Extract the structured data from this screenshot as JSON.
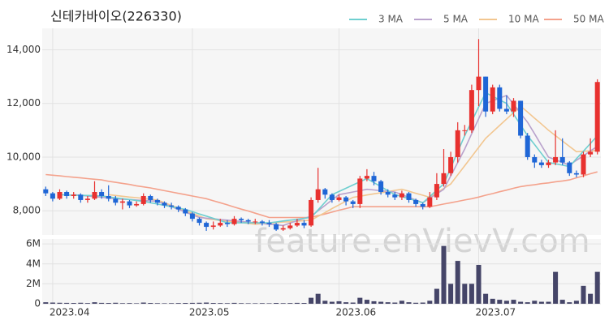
{
  "chart_data": {
    "type": "candlestick",
    "title": "신테카바이오(226330)",
    "watermark": "feature.enVievV.com",
    "categories": [
      null,
      "2023.04",
      null,
      null,
      null,
      null,
      null,
      null,
      null,
      null,
      null,
      null,
      null,
      null,
      null,
      null,
      null,
      null,
      null,
      null,
      null,
      "2023.05",
      null,
      null,
      null,
      null,
      null,
      null,
      null,
      null,
      null,
      null,
      null,
      null,
      null,
      null,
      null,
      null,
      null,
      null,
      null,
      null,
      "2023.06",
      null,
      null,
      null,
      null,
      null,
      null,
      null,
      null,
      null,
      null,
      null,
      null,
      null,
      null,
      null,
      null,
      null,
      null,
      null,
      "2023.07",
      null,
      null,
      null,
      null,
      null,
      null,
      null,
      null,
      null,
      null,
      null,
      null,
      null,
      null,
      null,
      null,
      null
    ],
    "open": [
      8800,
      8650,
      8450,
      8700,
      8550,
      8600,
      8400,
      8450,
      8700,
      8550,
      8450,
      8300,
      8350,
      8200,
      8250,
      8550,
      8400,
      8300,
      8200,
      8150,
      8050,
      7900,
      7700,
      7550,
      7400,
      7450,
      7550,
      7500,
      7700,
      7650,
      7600,
      7600,
      7550,
      7500,
      7300,
      7350,
      7450,
      7550,
      7450,
      8400,
      8800,
      8600,
      8400,
      8500,
      8350,
      8250,
      9200,
      9300,
      9100,
      8700,
      8600,
      8500,
      8650,
      8400,
      8250,
      8150,
      8500,
      9000,
      9400,
      10000,
      11000,
      11000,
      12500,
      13000,
      11700,
      12600,
      11800,
      11700,
      12100,
      10800,
      10000,
      9800,
      9700,
      9800,
      10000,
      9800,
      9400,
      9350,
      10100,
      10200
    ],
    "high": [
      8900,
      8700,
      8800,
      8750,
      8700,
      8650,
      8550,
      9100,
      8800,
      8950,
      8550,
      8450,
      8400,
      8350,
      8650,
      8600,
      8450,
      8350,
      8300,
      8200,
      8100,
      7950,
      7750,
      7600,
      7600,
      7700,
      7650,
      7800,
      7750,
      7700,
      7700,
      7650,
      7650,
      7550,
      7450,
      7550,
      7700,
      7650,
      8500,
      9600,
      8850,
      8650,
      8600,
      8550,
      8400,
      9300,
      9550,
      9450,
      9150,
      8800,
      8700,
      8750,
      8700,
      8450,
      8300,
      8700,
      9400,
      10300,
      10200,
      11300,
      11200,
      12700,
      14400,
      13000,
      12700,
      12700,
      12300,
      12200,
      12100,
      10900,
      10100,
      9900,
      9900,
      11000,
      10700,
      9850,
      9500,
      10200,
      10700,
      12900
    ],
    "low": [
      8550,
      8350,
      8400,
      8450,
      8450,
      8300,
      8300,
      8400,
      8450,
      8350,
      8200,
      8050,
      8100,
      8150,
      8200,
      8300,
      8200,
      8100,
      8050,
      7950,
      7800,
      7600,
      7450,
      7250,
      7300,
      7400,
      7400,
      7450,
      7550,
      7500,
      7500,
      7450,
      7400,
      7250,
      7250,
      7300,
      7400,
      7350,
      7400,
      8300,
      8450,
      8300,
      8350,
      8200,
      8100,
      8100,
      9100,
      8950,
      8600,
      8500,
      8400,
      8400,
      8300,
      8150,
      8050,
      8100,
      8400,
      8900,
      9300,
      9800,
      10800,
      10900,
      11900,
      11500,
      11600,
      11700,
      11600,
      11500,
      10700,
      9900,
      9600,
      9600,
      9600,
      9700,
      9700,
      9300,
      9250,
      9250,
      10000,
      10100
    ],
    "close": [
      8650,
      8450,
      8700,
      8550,
      8600,
      8400,
      8450,
      8700,
      8550,
      8450,
      8300,
      8350,
      8200,
      8250,
      8550,
      8400,
      8300,
      8200,
      8150,
      8050,
      7900,
      7700,
      7550,
      7400,
      7450,
      7550,
      7500,
      7700,
      7650,
      7600,
      7600,
      7550,
      7500,
      7300,
      7350,
      7450,
      7550,
      7450,
      8400,
      8800,
      8600,
      8400,
      8500,
      8350,
      8250,
      9200,
      9300,
      9100,
      8700,
      8600,
      8500,
      8650,
      8400,
      8250,
      8150,
      8500,
      9000,
      9400,
      10000,
      11000,
      11000,
      12500,
      13000,
      11700,
      12600,
      11800,
      11700,
      12100,
      10800,
      10000,
      9800,
      9700,
      9800,
      10000,
      9800,
      9400,
      9350,
      10100,
      10200,
      12800
    ],
    "volume": [
      150000,
      120000,
      100000,
      90000,
      80000,
      100000,
      70000,
      150000,
      90000,
      80000,
      100000,
      60000,
      70000,
      50000,
      120000,
      80000,
      60000,
      50000,
      60000,
      70000,
      80000,
      90000,
      100000,
      120000,
      80000,
      70000,
      60000,
      90000,
      60000,
      50000,
      50000,
      60000,
      50000,
      80000,
      60000,
      70000,
      90000,
      80000,
      600000,
      1000000,
      300000,
      200000,
      250000,
      150000,
      120000,
      600000,
      400000,
      250000,
      200000,
      150000,
      120000,
      300000,
      150000,
      100000,
      120000,
      300000,
      1500000,
      5800000,
      2000000,
      4300000,
      2000000,
      2000000,
      3900000,
      1000000,
      500000,
      400000,
      300000,
      400000,
      200000,
      150000,
      300000,
      200000,
      200000,
      3200000,
      400000,
      150000,
      300000,
      1800000,
      1000000,
      3200000
    ],
    "up_color": "#e8312f",
    "down_color": "#1f66d6",
    "volume_color": "#454568",
    "series": [
      {
        "name": "3 MA",
        "color": "#6fcfd0",
        "values": [
          null,
          null,
          8600,
          8590,
          8580,
          8575,
          8570,
          8560,
          8550,
          8520,
          8480,
          8450,
          8420,
          8380,
          8350,
          8300,
          8250,
          8200,
          8150,
          8100,
          8050,
          7970,
          7880,
          7800,
          7720,
          7630,
          7550,
          7550,
          7550,
          7550,
          7550,
          7550,
          7550,
          7580,
          7620,
          7650,
          7680,
          7720,
          7750,
          8030,
          8320,
          8600,
          8720,
          8840,
          8960,
          9080,
          9200,
          9050,
          8900,
          8750,
          8600,
          8530,
          8450,
          8380,
          8300,
          8530,
          8770,
          9000,
          9600,
          10200,
          10800,
          11330,
          11870,
          12400,
          12270,
          12130,
          12000,
          11600,
          11200,
          10800,
          10470,
          10130,
          9800,
          9750,
          9700,
          9650,
          9940,
          10220,
          10510,
          10800
        ]
      },
      {
        "name": "5 MA",
        "color": "#b9a2cc",
        "values": [
          null,
          null,
          null,
          null,
          8600,
          8575,
          8550,
          8525,
          8500,
          8475,
          8450,
          8430,
          8420,
          8400,
          8380,
          8370,
          8350,
          8250,
          8150,
          8050,
          7950,
          7850,
          7750,
          7725,
          7700,
          7675,
          7650,
          7625,
          7600,
          7575,
          7550,
          7525,
          7500,
          7475,
          7450,
          7540,
          7630,
          7710,
          7800,
          8000,
          8200,
          8400,
          8600,
          8650,
          8700,
          8750,
          8800,
          8775,
          8750,
          8725,
          8700,
          8600,
          8500,
          8400,
          8300,
          8470,
          8630,
          8800,
          9300,
          9800,
          10300,
          10870,
          11430,
          12000,
          12100,
          12200,
          12300,
          11970,
          11630,
          11300,
          10870,
          10430,
          10000,
          9900,
          9800,
          9700,
          9880,
          10050,
          10230,
          10400
        ]
      },
      {
        "name": "10 MA",
        "color": "#f2c690",
        "values": [
          null,
          null,
          null,
          null,
          null,
          null,
          null,
          null,
          null,
          8600,
          8570,
          8540,
          8510,
          8490,
          8460,
          8430,
          8400,
          8300,
          8200,
          8100,
          8000,
          7900,
          7800,
          7700,
          7670,
          7640,
          7610,
          7590,
          7560,
          7530,
          7500,
          7520,
          7540,
          7560,
          7580,
          7590,
          7610,
          7630,
          7650,
          7790,
          7930,
          8080,
          8220,
          8360,
          8500,
          8540,
          8590,
          8630,
          8670,
          8710,
          8760,
          8800,
          8730,
          8650,
          8580,
          8500,
          8670,
          8830,
          9000,
          9340,
          9680,
          10020,
          10360,
          10700,
          10940,
          11180,
          11420,
          11660,
          11900,
          11680,
          11450,
          11230,
          11000,
          10800,
          10600,
          10400,
          10200,
          10220,
          10230,
          10250
        ]
      },
      {
        "name": "50 MA",
        "color": "#f4a28c",
        "values": [
          9350,
          9325,
          9300,
          9275,
          9250,
          9225,
          9200,
          9175,
          9150,
          9100,
          9060,
          9020,
          8980,
          8930,
          8890,
          8850,
          8800,
          8750,
          8700,
          8650,
          8600,
          8550,
          8500,
          8450,
          8370,
          8300,
          8220,
          8140,
          8060,
          7990,
          7910,
          7830,
          7750,
          7750,
          7750,
          7750,
          7750,
          7750,
          7750,
          7820,
          7880,
          7950,
          8020,
          8080,
          8150,
          8150,
          8150,
          8150,
          8150,
          8150,
          8150,
          8150,
          8150,
          8150,
          8150,
          8150,
          8200,
          8250,
          8300,
          8350,
          8400,
          8450,
          8510,
          8580,
          8640,
          8710,
          8770,
          8840,
          8900,
          8940,
          8970,
          9010,
          9040,
          9080,
          9110,
          9150,
          9230,
          9300,
          9380,
          9450
        ]
      }
    ],
    "ylim": [
      7100,
      14800
    ],
    "yticks": [
      {
        "value": 8000,
        "label": "8,000"
      },
      {
        "value": 10000,
        "label": "10,000"
      },
      {
        "value": 12000,
        "label": "12,000"
      },
      {
        "value": 14000,
        "label": "14,000"
      }
    ],
    "volume_ylim": [
      0,
      6500000
    ],
    "volume_yticks": [
      0,
      {
        "value": 2000000,
        "label": "2M"
      },
      {
        "value": 4000000,
        "label": "4M"
      },
      {
        "value": 6000000,
        "label": "6M"
      }
    ],
    "grid": true
  }
}
